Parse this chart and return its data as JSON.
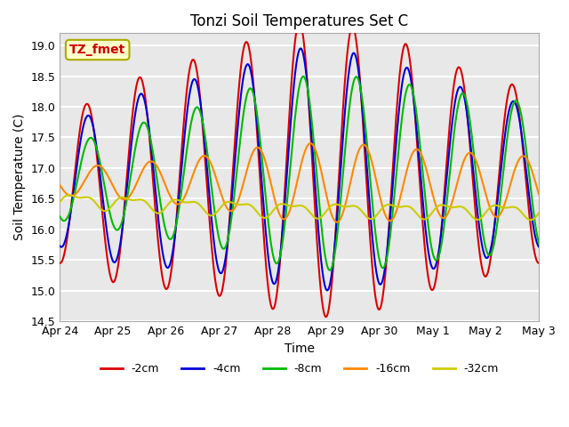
{
  "title": "Tonzi Soil Temperatures Set C",
  "xlabel": "Time",
  "ylabel": "Soil Temperature (C)",
  "ylim": [
    14.5,
    19.2
  ],
  "xlim_days": [
    0,
    9
  ],
  "x_tick_labels": [
    "Apr 24",
    "Apr 25",
    "Apr 26",
    "Apr 27",
    "Apr 28",
    "Apr 29",
    "Apr 30",
    "May 1",
    "May 2",
    "May 3"
  ],
  "x_tick_positions": [
    0,
    1,
    2,
    3,
    4,
    5,
    6,
    7,
    8,
    9
  ],
  "series_colors": {
    "-2cm": "#dd0000",
    "-4cm": "#0000dd",
    "-8cm": "#00bb00",
    "-16cm": "#ff8800",
    "-32cm": "#cccc00"
  },
  "linewidth": 1.5,
  "annotation_label": "TZ_fmet",
  "plot_bg_color": "#e8e8e8",
  "grid_color": "white",
  "legend_labels": [
    "-2cm",
    "-4cm",
    "-8cm",
    "-16cm",
    "-32cm"
  ],
  "legend_colors": [
    "#dd0000",
    "#0000dd",
    "#00bb00",
    "#ff8800",
    "#cccc00"
  ]
}
